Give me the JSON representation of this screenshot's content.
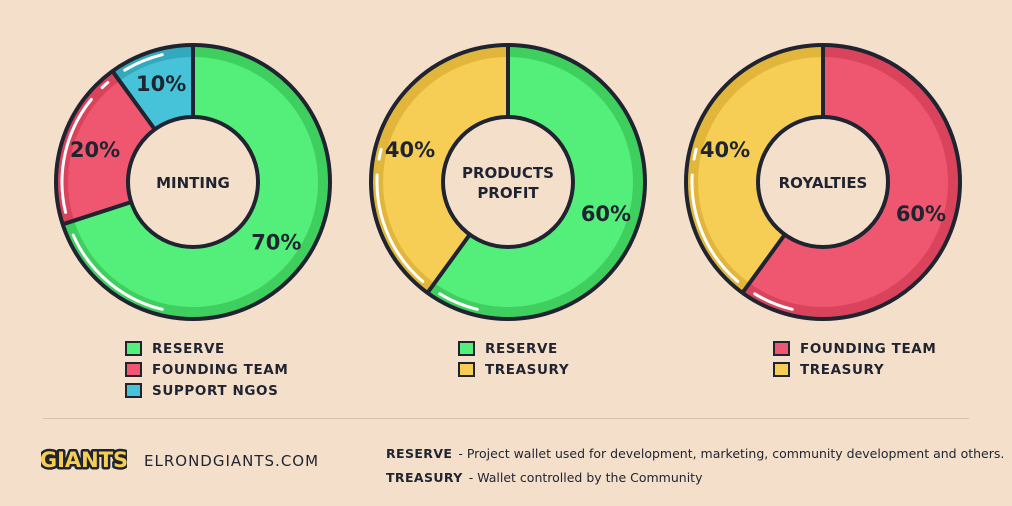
{
  "colors": {
    "reserve": "#54ee7a",
    "reserve_shade": "#3fcf5f",
    "founding_team": "#ef5670",
    "founding_team_shade": "#d9435c",
    "support_ngos": "#46c3d8",
    "support_ngos_shade": "#33a9bd",
    "treasury": "#f6cd55",
    "treasury_shade": "#e2b63b",
    "outline": "#1f2430",
    "background": "#f4dfcb"
  },
  "chart_data": [
    {
      "type": "pie",
      "title": "MINTING",
      "slices": [
        {
          "label": "RESERVE",
          "value": 70,
          "display": "70%",
          "color": "#54ee7a",
          "shade": "#3fcf5f"
        },
        {
          "label": "FOUNDING TEAM",
          "value": 20,
          "display": "20%",
          "color": "#ef5670",
          "shade": "#d9435c"
        },
        {
          "label": "SUPPORT NGOS",
          "value": 10,
          "display": "10%",
          "color": "#46c3d8",
          "shade": "#33a9bd"
        }
      ],
      "legend": [
        "RESERVE",
        "FOUNDING TEAM",
        "SUPPORT NGOS"
      ]
    },
    {
      "type": "pie",
      "title": "PRODUCTS PROFIT",
      "title_lines": [
        "PRODUCTS",
        "PROFIT"
      ],
      "slices": [
        {
          "label": "RESERVE",
          "value": 60,
          "display": "60%",
          "color": "#54ee7a",
          "shade": "#3fcf5f"
        },
        {
          "label": "TREASURY",
          "value": 40,
          "display": "40%",
          "color": "#f6cd55",
          "shade": "#e2b63b"
        }
      ],
      "legend": [
        "RESERVE",
        "TREASURY"
      ]
    },
    {
      "type": "pie",
      "title": "ROYALTIES",
      "slices": [
        {
          "label": "FOUNDING TEAM",
          "value": 60,
          "display": "60%",
          "color": "#ef5670",
          "shade": "#d9435c"
        },
        {
          "label": "TREASURY",
          "value": 40,
          "display": "40%",
          "color": "#f6cd55",
          "shade": "#e2b63b"
        }
      ],
      "legend": [
        "FOUNDING TEAM",
        "TREASURY"
      ]
    }
  ],
  "footer": {
    "logo_text": "GIANTS",
    "website": "ELRONDGIANTS.COM",
    "notes": [
      {
        "term": "RESERVE",
        "text": "- Project wallet used for development, marketing, community development and others."
      },
      {
        "term": "TREASURY",
        "text": "- Wallet controlled by the Community"
      }
    ]
  }
}
